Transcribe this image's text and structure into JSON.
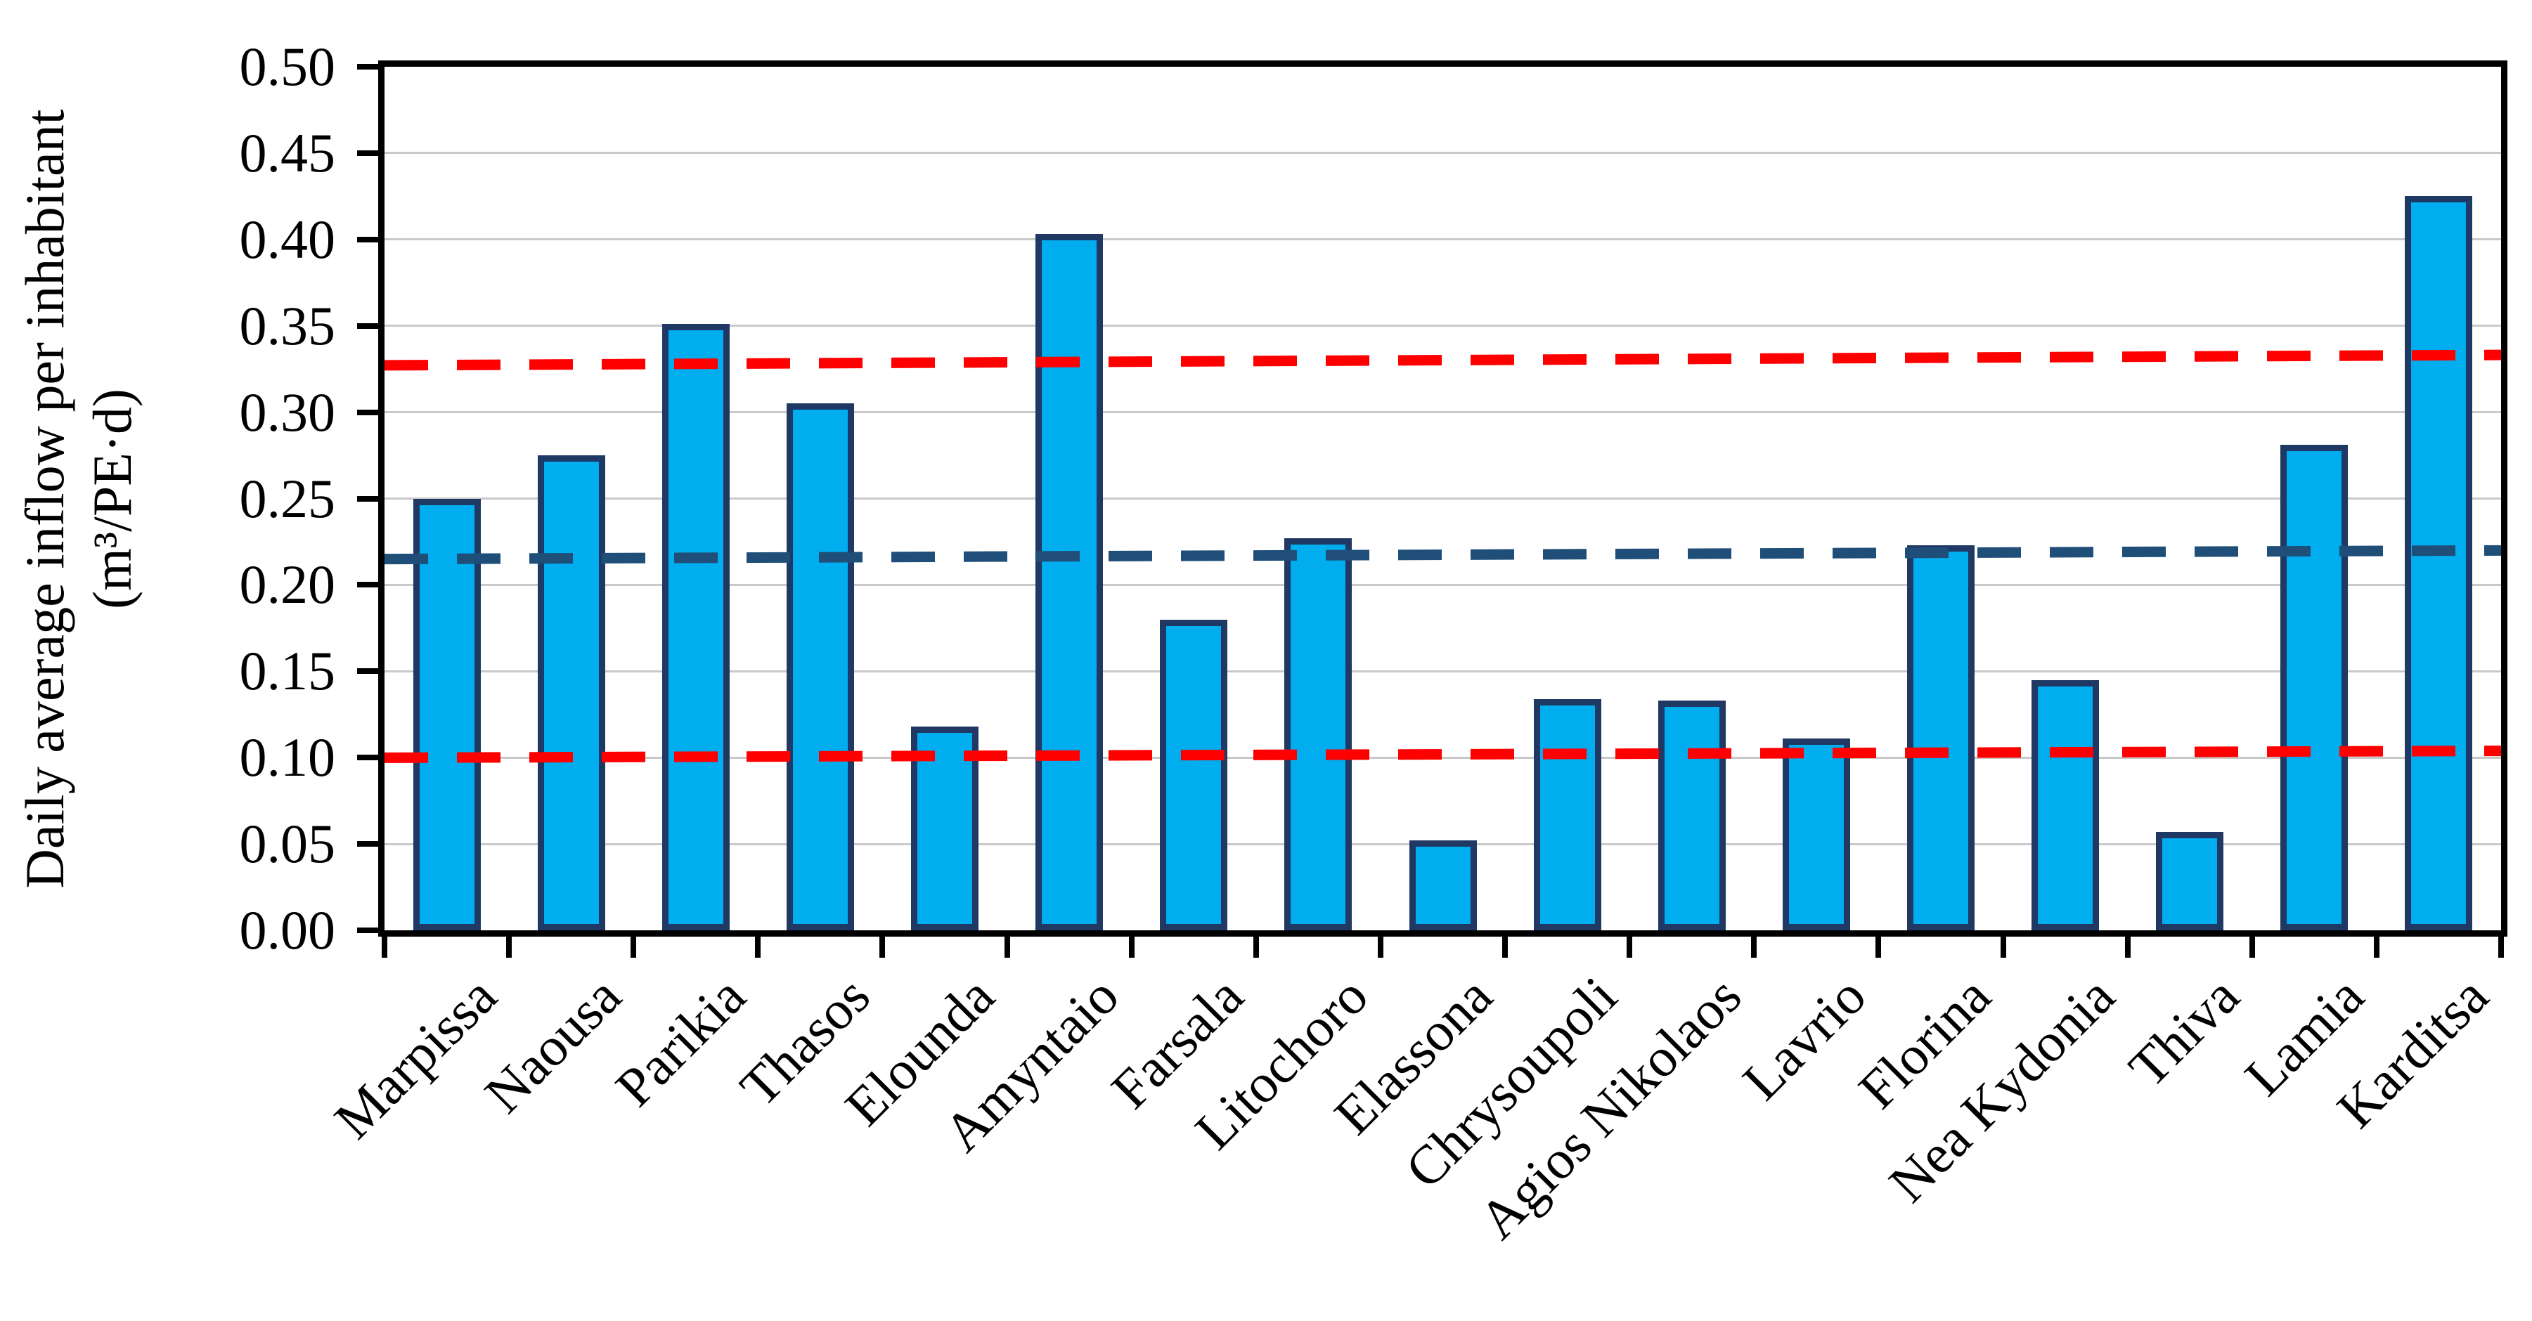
{
  "chart_data": {
    "type": "bar",
    "title": "",
    "ylabel_line1": "Daily average inflow per inhabitant",
    "ylabel_line2": "(m³/PE·d)",
    "categories": [
      "Marpissa",
      "Naousa",
      "Parikia",
      "Thasos",
      "Elounda",
      "Amyntaio",
      "Farsala",
      "Litochoro",
      "Elassona",
      "Chrysoupoli",
      "Agios Nikolaos",
      "Lavrio",
      "Florina",
      "Nea Kydonia",
      "Thiva",
      "Lamia",
      "Karditsa"
    ],
    "values": [
      0.25,
      0.275,
      0.351,
      0.305,
      0.118,
      0.403,
      0.18,
      0.227,
      0.052,
      0.134,
      0.133,
      0.111,
      0.223,
      0.145,
      0.057,
      0.281,
      0.425
    ],
    "ylim": [
      0.0,
      0.5
    ],
    "ytick_step": 0.05,
    "ytick_labels": [
      "0.00",
      "0.05",
      "0.10",
      "0.15",
      "0.20",
      "0.25",
      "0.30",
      "0.35",
      "0.40",
      "0.45",
      "0.50"
    ],
    "grid": "horizontal-gridlines-on",
    "legend": "none",
    "bar_fill": "#00AEEF",
    "bar_border": "#1F3864",
    "gridline_color": "#C9C9C9",
    "axis_color": "#000000",
    "reference_lines": [
      {
        "name": "upper-red-dashed-line",
        "color": "#FE0000",
        "style": "dashed",
        "y_start": 0.327,
        "y_end": 0.333
      },
      {
        "name": "mean-blue-dashed-line",
        "color": "#1F4E79",
        "style": "dashed",
        "y_start": 0.215,
        "y_end": 0.22
      },
      {
        "name": "lower-red-dashed-line",
        "color": "#FE0000",
        "style": "dashed",
        "y_start": 0.1,
        "y_end": 0.104
      }
    ]
  },
  "layout_text": {
    "x_axis_label": "",
    "note": ""
  }
}
